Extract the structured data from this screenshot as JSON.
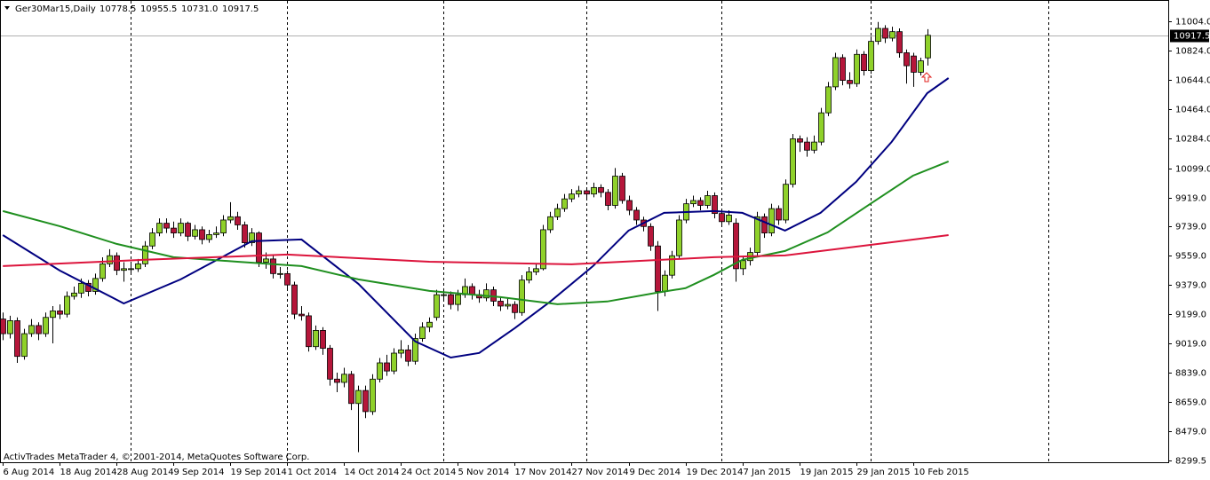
{
  "chart_data": {
    "type": "candlestick",
    "header": {
      "symbol": "Ger30Mar15,Daily",
      "ohlc": [
        "10778.5",
        "10955.5",
        "10731.0",
        "10917.5"
      ]
    },
    "footer": "ActivTrades MetaTrader 4, © 2001-2014, MetaQuotes Software Corp.",
    "bull_color": "#8fd12a",
    "bear_color": "#b5163a",
    "open": [
      9170,
      9080,
      9160,
      8940,
      9080,
      9130,
      9080,
      9180,
      9220,
      9200,
      9310,
      9330,
      9390,
      9340,
      9420,
      9510,
      9560,
      9470,
      9480,
      9480,
      9510,
      9620,
      9700,
      9760,
      9730,
      9700,
      9760,
      9680,
      9720,
      9660,
      9690,
      9700,
      9780,
      9800,
      9750,
      9640,
      9700,
      9520,
      9540,
      9450,
      9450,
      9380,
      9200,
      9190,
      9000,
      9100,
      8990,
      8800,
      8780,
      8830,
      8650,
      8730,
      8600,
      8800,
      8900,
      8850,
      8960,
      8980,
      8910,
      9050,
      9120,
      9180,
      9320,
      9320,
      9260,
      9320,
      9370,
      9320,
      9300,
      9350,
      9280,
      9250,
      9260,
      9210,
      9410,
      9460,
      9480,
      9720,
      9800,
      9850,
      9910,
      9940,
      9960,
      9940,
      9980,
      9950,
      9870,
      10050,
      9900,
      9840,
      9780,
      9740,
      9620,
      9340,
      9440,
      9560,
      9780,
      9880,
      9900,
      9870,
      9930,
      9820,
      9770,
      9760,
      9480,
      9530,
      9580,
      9800,
      9700,
      9850,
      9780,
      10000,
      10280,
      10260,
      10210,
      10260,
      10440,
      10600,
      10780,
      10640,
      10620,
      10800,
      10700,
      10880,
      10960,
      10900,
      10940,
      10810,
      10790,
      10690,
      10778.5
    ],
    "high": [
      9210,
      9190,
      9180,
      9110,
      9170,
      9150,
      9210,
      9250,
      9260,
      9340,
      9370,
      9420,
      9410,
      9450,
      9550,
      9600,
      9580,
      9520,
      9510,
      9540,
      9650,
      9730,
      9790,
      9790,
      9770,
      9790,
      9770,
      9750,
      9740,
      9720,
      9740,
      9810,
      9890,
      9830,
      9770,
      9730,
      9710,
      9580,
      9560,
      9490,
      9470,
      9400,
      9250,
      9210,
      9130,
      9120,
      9010,
      8840,
      8870,
      8850,
      8760,
      8760,
      8830,
      8930,
      8950,
      8990,
      9040,
      9010,
      9080,
      9150,
      9180,
      9350,
      9360,
      9340,
      9350,
      9420,
      9390,
      9350,
      9390,
      9370,
      9310,
      9300,
      9280,
      9440,
      9490,
      9510,
      9750,
      9830,
      9880,
      9940,
      9970,
      9990,
      9980,
      10010,
      10000,
      9970,
      10100,
      10070,
      9930,
      9860,
      9800,
      9760,
      9650,
      9470,
      9590,
      9810,
      9910,
      9930,
      9920,
      9960,
      9950,
      9850,
      9840,
      9790,
      9560,
      9610,
      9830,
      9820,
      9880,
      9870,
      10030,
      10310,
      10300,
      10290,
      10300,
      10470,
      10630,
      10810,
      10800,
      10690,
      10830,
      10820,
      10910,
      11000,
      10980,
      10970,
      10960,
      10830,
      10810,
      10780,
      10955.5
    ],
    "low": [
      9040,
      9050,
      8900,
      8920,
      9060,
      9040,
      9060,
      9020,
      9170,
      9180,
      9290,
      9300,
      9310,
      9320,
      9400,
      9490,
      9440,
      9400,
      9450,
      9460,
      9490,
      9600,
      9680,
      9700,
      9670,
      9680,
      9650,
      9660,
      9630,
      9640,
      9670,
      9680,
      9760,
      9720,
      9610,
      9620,
      9490,
      9480,
      9420,
      9420,
      9350,
      9170,
      9160,
      8970,
      8980,
      8950,
      8760,
      8720,
      8750,
      8610,
      8350,
      8560,
      8580,
      8780,
      8820,
      8830,
      8930,
      8880,
      8890,
      9030,
      9090,
      9160,
      9280,
      9230,
      9220,
      9300,
      9290,
      9270,
      9280,
      9250,
      9220,
      9230,
      9170,
      9190,
      9390,
      9440,
      9470,
      9700,
      9780,
      9830,
      9890,
      9920,
      9910,
      9920,
      9920,
      9840,
      9850,
      9880,
      9810,
      9750,
      9710,
      9590,
      9220,
      9310,
      9420,
      9540,
      9760,
      9860,
      9840,
      9850,
      9790,
      9740,
      9750,
      9400,
      9440,
      9500,
      9560,
      9670,
      9680,
      9750,
      9760,
      9980,
      10200,
      10170,
      10190,
      10240,
      10420,
      10580,
      10610,
      10590,
      10600,
      10670,
      10680,
      10860,
      10870,
      10880,
      10780,
      10620,
      10600,
      10670,
      10731
    ],
    "close": [
      9080,
      9160,
      8940,
      9080,
      9130,
      9080,
      9180,
      9220,
      9200,
      9310,
      9330,
      9390,
      9340,
      9420,
      9510,
      9560,
      9470,
      9480,
      9480,
      9510,
      9620,
      9700,
      9760,
      9730,
      9700,
      9760,
      9680,
      9720,
      9660,
      9690,
      9700,
      9780,
      9800,
      9750,
      9640,
      9700,
      9520,
      9540,
      9450,
      9450,
      9380,
      9200,
      9190,
      9000,
      9100,
      8990,
      8800,
      8780,
      8830,
      8650,
      8730,
      8600,
      8800,
      8900,
      8850,
      8960,
      8980,
      8910,
      9050,
      9120,
      9150,
      9320,
      9320,
      9260,
      9320,
      9370,
      9320,
      9300,
      9350,
      9280,
      9250,
      9260,
      9210,
      9410,
      9460,
      9480,
      9720,
      9800,
      9850,
      9910,
      9940,
      9960,
      9940,
      9980,
      9950,
      9870,
      10050,
      9900,
      9840,
      9780,
      9740,
      9620,
      9340,
      9440,
      9560,
      9780,
      9880,
      9900,
      9870,
      9930,
      9820,
      9770,
      9810,
      9480,
      9530,
      9580,
      9800,
      9700,
      9850,
      9780,
      10000,
      10280,
      10260,
      10210,
      10260,
      10440,
      10600,
      10780,
      10640,
      10620,
      10800,
      10700,
      10880,
      10960,
      10900,
      10940,
      10810,
      10730,
      10690,
      10760,
      10917.5
    ],
    "moving_averages": [
      {
        "color": "#000080",
        "x": [
          0,
          8,
          17,
          25,
          35,
          42,
          50,
          58,
          63,
          67,
          72,
          77,
          83,
          88,
          93,
          100,
          104,
          110,
          115,
          120,
          125,
          130,
          133
        ],
        "values": [
          9687,
          9469,
          9266,
          9414,
          9649,
          9660,
          9387,
          9032,
          8933,
          8961,
          9114,
          9278,
          9496,
          9715,
          9824,
          9835,
          9824,
          9715,
          9824,
          10015,
          10261,
          10561,
          10654
        ]
      },
      {
        "color": "#1f8f1f",
        "x": [
          0,
          8,
          16,
          24,
          33,
          42,
          50,
          60,
          70,
          78,
          85,
          92,
          96,
          100,
          104,
          110,
          116,
          122,
          128,
          133
        ],
        "values": [
          9835,
          9742,
          9633,
          9551,
          9523,
          9496,
          9414,
          9343,
          9305,
          9261,
          9278,
          9332,
          9360,
          9442,
          9535,
          9589,
          9704,
          9879,
          10053,
          10141
        ]
      },
      {
        "color": "#dc143c",
        "x": [
          0,
          20,
          40,
          60,
          80,
          100,
          110,
          120,
          133
        ],
        "values": [
          9496,
          9535,
          9567,
          9523,
          9507,
          9551,
          9562,
          9616,
          9687
        ]
      }
    ],
    "current_price": {
      "value": 10917.5,
      "label": "10917.5"
    },
    "period_separators": [
      18,
      40,
      62,
      82,
      101,
      122,
      147
    ],
    "xlim": [
      -0.4,
      163.9
    ],
    "ylim": [
      8288,
      11124
    ],
    "xticks": [
      {
        "value": 0,
        "label": "6 Aug 2014"
      },
      {
        "value": 8,
        "label": "18 Aug 2014"
      },
      {
        "value": 16,
        "label": "28 Aug 2014"
      },
      {
        "value": 24,
        "label": "9 Sep 2014"
      },
      {
        "value": 32,
        "label": "19 Sep 2014"
      },
      {
        "value": 40,
        "label": "1 Oct 2014"
      },
      {
        "value": 48,
        "label": "14 Oct 2014"
      },
      {
        "value": 56,
        "label": "24 Oct 2014"
      },
      {
        "value": 64,
        "label": "5 Nov 2014"
      },
      {
        "value": 72,
        "label": "17 Nov 2014"
      },
      {
        "value": 80,
        "label": "27 Nov 2014"
      },
      {
        "value": 88,
        "label": "9 Dec 2014"
      },
      {
        "value": 96,
        "label": "19 Dec 2014"
      },
      {
        "value": 104,
        "label": "7 Jan 2015"
      },
      {
        "value": 112,
        "label": "19 Jan 2015"
      },
      {
        "value": 120,
        "label": "29 Jan 2015"
      },
      {
        "value": 128,
        "label": "10 Feb 2015"
      }
    ],
    "yticks": [
      {
        "value": 11004,
        "label": "11004.0"
      },
      {
        "value": 10824,
        "label": "10824.0"
      },
      {
        "value": 10644,
        "label": "10644.0"
      },
      {
        "value": 10464,
        "label": "10464.0"
      },
      {
        "value": 10284,
        "label": "10284.0"
      },
      {
        "value": 10099,
        "label": "10099.0"
      },
      {
        "value": 9919,
        "label": "9919.0"
      },
      {
        "value": 9739,
        "label": "9739.0"
      },
      {
        "value": 9559,
        "label": "9559.0"
      },
      {
        "value": 9379,
        "label": "9379.0"
      },
      {
        "value": 9199,
        "label": "9199.0"
      },
      {
        "value": 9019,
        "label": "9019.0"
      },
      {
        "value": 8839,
        "label": "8839.0"
      },
      {
        "value": 8659,
        "label": "8659.0"
      },
      {
        "value": 8479,
        "label": "8479.0"
      },
      {
        "value": 8299.5,
        "label": "8299.5"
      }
    ]
  }
}
